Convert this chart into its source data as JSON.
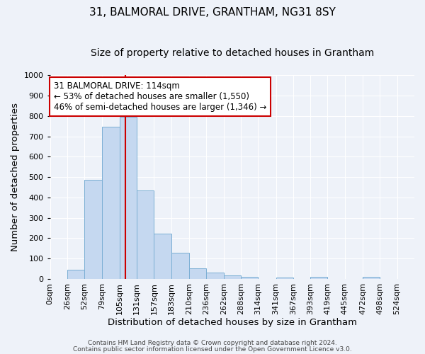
{
  "title": "31, BALMORAL DRIVE, GRANTHAM, NG31 8SY",
  "subtitle": "Size of property relative to detached houses in Grantham",
  "xlabel": "Distribution of detached houses by size in Grantham",
  "ylabel": "Number of detached properties",
  "bin_edges": [
    0,
    26,
    52,
    79,
    105,
    131,
    157,
    183,
    210,
    236,
    262,
    288,
    314,
    341,
    367,
    393,
    419,
    445,
    472,
    498,
    524
  ],
  "bin_labels": [
    "0sqm",
    "26sqm",
    "52sqm",
    "79sqm",
    "105sqm",
    "131sqm",
    "157sqm",
    "183sqm",
    "210sqm",
    "236sqm",
    "262sqm",
    "288sqm",
    "314sqm",
    "341sqm",
    "367sqm",
    "393sqm",
    "419sqm",
    "445sqm",
    "472sqm",
    "498sqm",
    "524sqm"
  ],
  "bar_values": [
    0,
    45,
    485,
    748,
    795,
    435,
    222,
    128,
    52,
    30,
    17,
    10,
    0,
    7,
    0,
    10,
    0,
    0,
    10,
    0
  ],
  "bar_color": "#c5d8f0",
  "bar_edge_color": "#7bafd4",
  "vline_x": 114,
  "vline_color": "#cc0000",
  "ylim": [
    0,
    1000
  ],
  "yticks": [
    0,
    100,
    200,
    300,
    400,
    500,
    600,
    700,
    800,
    900,
    1000
  ],
  "annotation_text_line1": "31 BALMORAL DRIVE: 114sqm",
  "annotation_text_line2": "← 53% of detached houses are smaller (1,550)",
  "annotation_text_line3": "46% of semi-detached houses are larger (1,346) →",
  "annotation_box_color": "#cc0000",
  "footer_line1": "Contains HM Land Registry data © Crown copyright and database right 2024.",
  "footer_line2": "Contains public sector information licensed under the Open Government Licence v3.0.",
  "background_color": "#eef2f9",
  "grid_color": "#ffffff",
  "title_fontsize": 11,
  "subtitle_fontsize": 10,
  "axis_label_fontsize": 9.5,
  "tick_fontsize": 8
}
